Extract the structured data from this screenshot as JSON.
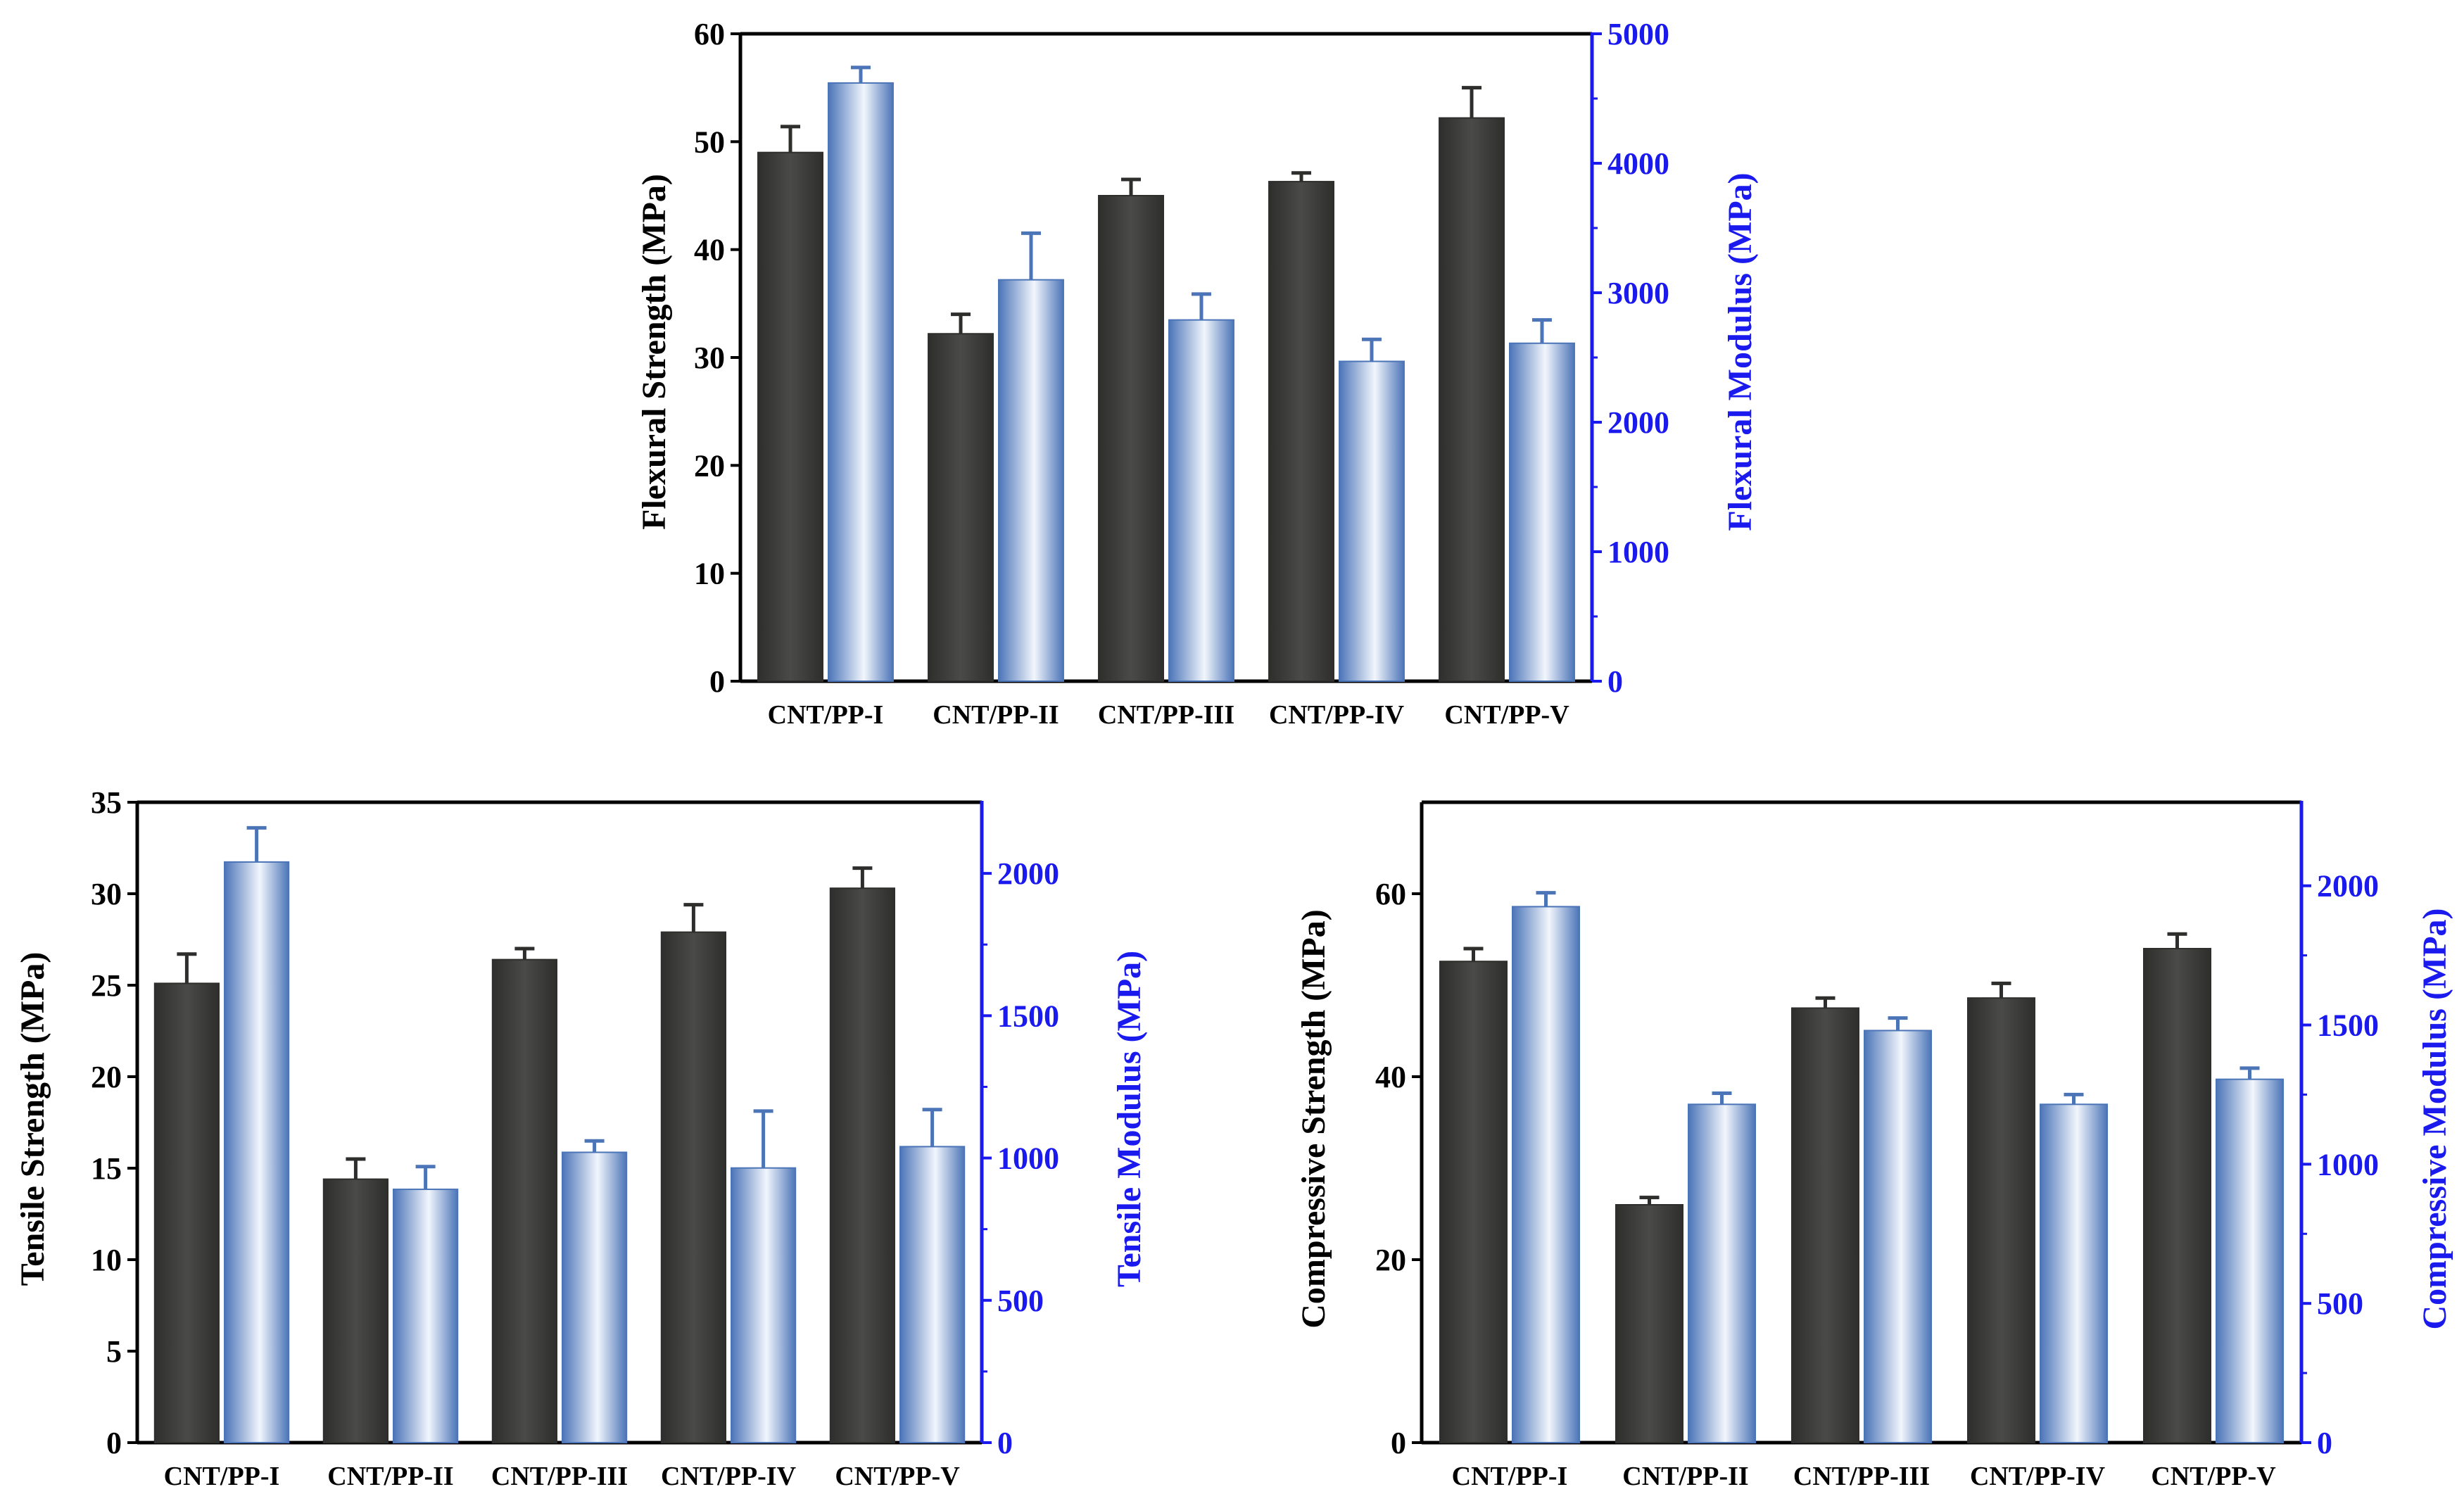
{
  "style": {
    "strength_color": "#4a4a48",
    "strength_dark": "#2e2e2c",
    "modulus_light": "#f2f6fc",
    "modulus_dark": "#4c75b8",
    "modulus_axis_color": "#1a1aee",
    "axis_color": "#000000"
  },
  "chart_data": [
    {
      "id": "flexural",
      "type": "bar",
      "categories": [
        "CNT/PP-I",
        "CNT/PP-II",
        "CNT/PP-III",
        "CNT/PP-IV",
        "CNT/PP-V"
      ],
      "ylabel": "Flexural Strength (MPa)",
      "y2label": "Flexural Modulus (MPa)",
      "ylim": [
        0,
        60
      ],
      "yticks": [
        0,
        10,
        20,
        30,
        40,
        50,
        60
      ],
      "y2lim": [
        0,
        5000
      ],
      "y2ticks": [
        0,
        1000,
        2000,
        3000,
        4000,
        5000
      ],
      "series": [
        {
          "axis": "left",
          "values": [
            49,
            32.2,
            45,
            46.3,
            52.2
          ],
          "errors": [
            2.4,
            1.8,
            1.5,
            0.8,
            2.8
          ]
        },
        {
          "axis": "right",
          "values": [
            4620,
            3100,
            2790,
            2470,
            2610
          ],
          "errors": [
            120,
            360,
            200,
            170,
            180
          ]
        }
      ]
    },
    {
      "id": "tensile",
      "type": "bar",
      "categories": [
        "CNT/PP-I",
        "CNT/PP-II",
        "CNT/PP-III",
        "CNT/PP-IV",
        "CNT/PP-V"
      ],
      "ylabel": "Tensile Strength (MPa)",
      "y2label": "Tensile Modulus (MPa)",
      "ylim": [
        0,
        35
      ],
      "yticks": [
        0,
        5,
        10,
        15,
        20,
        25,
        30,
        35
      ],
      "y2lim": [
        0,
        2250
      ],
      "y2ticks": [
        0,
        500,
        1000,
        1500,
        2000
      ],
      "series": [
        {
          "axis": "left",
          "values": [
            25.1,
            14.4,
            26.4,
            27.9,
            30.3
          ],
          "errors": [
            1.6,
            1.1,
            0.6,
            1.5,
            1.1
          ]
        },
        {
          "axis": "right",
          "values": [
            2040,
            890,
            1020,
            965,
            1040
          ],
          "errors": [
            120,
            80,
            40,
            200,
            130
          ]
        }
      ]
    },
    {
      "id": "compressive",
      "type": "bar",
      "categories": [
        "CNT/PP-I",
        "CNT/PP-II",
        "CNT/PP-III",
        "CNT/PP-IV",
        "CNT/PP-V"
      ],
      "ylabel": "Compressive Strength (MPa)",
      "y2label": "Compressive Modulus (MPa)",
      "ylim": [
        0,
        70
      ],
      "yticks": [
        0,
        20,
        40,
        60
      ],
      "y2lim": [
        0,
        2300
      ],
      "y2ticks": [
        0,
        500,
        1000,
        1500,
        2000
      ],
      "series": [
        {
          "axis": "left",
          "values": [
            52.6,
            26,
            47.5,
            48.6,
            54
          ],
          "errors": [
            1.4,
            0.8,
            1.1,
            1.6,
            1.6
          ]
        },
        {
          "axis": "right",
          "values": [
            1925,
            1215,
            1480,
            1215,
            1305
          ],
          "errors": [
            50,
            40,
            45,
            35,
            40
          ]
        }
      ]
    }
  ]
}
